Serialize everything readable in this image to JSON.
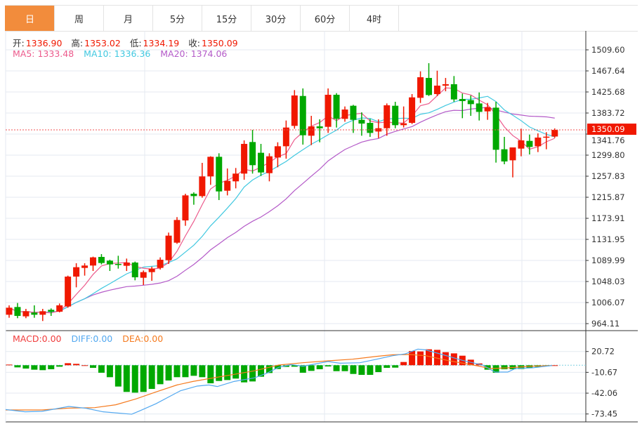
{
  "tabs": [
    {
      "label": "日",
      "active": true
    },
    {
      "label": "周"
    },
    {
      "label": "月"
    },
    {
      "label": "5分"
    },
    {
      "label": "15分"
    },
    {
      "label": "30分"
    },
    {
      "label": "60分"
    },
    {
      "label": "4时"
    }
  ],
  "ohlc_legend": {
    "open_label": "开:",
    "open": "1336.90",
    "high_label": "高:",
    "high": "1353.02",
    "low_label": "低:",
    "low": "1334.19",
    "close_label": "收:",
    "close": "1350.09"
  },
  "ma_legend": {
    "ma5": "MA5: 1333.48",
    "ma10": "MA10: 1336.36",
    "ma20": "MA20: 1374.06"
  },
  "macd_legend": {
    "macd": "MACD:0.00",
    "diff": "DIFF:0.00",
    "dea": "DEA:0.00"
  },
  "colors": {
    "up": "#f01800",
    "down": "#00a800",
    "ma5": "#ec5a8c",
    "ma10": "#40c8e0",
    "ma20": "#b45ac8",
    "diff": "#52a8f0",
    "dea": "#f57a1e",
    "tab_active": "#f28c3c"
  },
  "chart_data": {
    "type": "candlestick",
    "price_axis": {
      "ticks": [
        "1509.60",
        "1467.64",
        "1425.68",
        "1383.72",
        "1341.76",
        "1299.80",
        "1257.83",
        "1215.87",
        "1173.91",
        "1131.95",
        "1089.99",
        "1048.03",
        "1006.07",
        "964.11"
      ],
      "range": [
        964.11,
        1509.6
      ]
    },
    "current_price_label": "1350.09",
    "current_price": 1350.09,
    "candles": [
      [
        981.8,
        1000.5,
        975.8,
        995.8
      ],
      [
        997.2,
        1005.2,
        974.9,
        979.5
      ],
      [
        978.6,
        993.5,
        974.9,
        988.8
      ],
      [
        986.0,
        1000.5,
        975.8,
        981.8
      ],
      [
        981.8,
        993.5,
        969.3,
        988.8
      ],
      [
        991.6,
        994.4,
        979.5,
        987.9
      ],
      [
        987.9,
        1004.2,
        986.5,
        1000.5
      ],
      [
        998.2,
        1059.7,
        995.8,
        1057.8
      ],
      [
        1057.8,
        1084.4,
        1036.4,
        1076.5
      ],
      [
        1075.1,
        1084.4,
        1059.7,
        1079.8
      ],
      [
        1079.8,
        1097.5,
        1069.0,
        1096.1
      ],
      [
        1097.0,
        1102.6,
        1082.1,
        1084.9
      ],
      [
        1089.5,
        1091.4,
        1069.0,
        1082.1
      ],
      [
        1083.0,
        1099.3,
        1073.7,
        1081.1
      ],
      [
        1079.3,
        1093.7,
        1069.0,
        1085.8
      ],
      [
        1085.8,
        1087.7,
        1050.4,
        1056.4
      ],
      [
        1055.5,
        1070.0,
        1041.0,
        1066.7
      ],
      [
        1066.7,
        1077.4,
        1049.5,
        1073.7
      ],
      [
        1075.1,
        1096.1,
        1071.8,
        1091.4
      ],
      [
        1090.5,
        1145.5,
        1083.0,
        1139.4
      ],
      [
        1125.4,
        1176.3,
        1123.1,
        1170.6
      ],
      [
        1169.7,
        1222.9,
        1159.0,
        1219.6
      ],
      [
        1222.9,
        1225.7,
        1201.0,
        1218.2
      ],
      [
        1218.2,
        1284.4,
        1215.0,
        1257.4
      ],
      [
        1257.4,
        1297.5,
        1240.6,
        1296.5
      ],
      [
        1296.5,
        1303.5,
        1210.3,
        1227.5
      ],
      [
        1228.9,
        1273.2,
        1219.6,
        1248.5
      ],
      [
        1247.6,
        1274.2,
        1233.6,
        1263.0
      ],
      [
        1263.0,
        1329.2,
        1250.8,
        1322.2
      ],
      [
        1325.9,
        1350.2,
        1263.0,
        1279.8
      ],
      [
        1304.5,
        1322.2,
        1258.3,
        1265.3
      ],
      [
        1263.9,
        1303.5,
        1247.6,
        1297.5
      ],
      [
        1295.1,
        1325.4,
        1275.6,
        1317.5
      ],
      [
        1317.5,
        1368.8,
        1292.8,
        1354.8
      ],
      [
        1358.1,
        1429.4,
        1352.5,
        1418.7
      ],
      [
        1417.7,
        1432.7,
        1320.8,
        1339.4
      ],
      [
        1338.5,
        1378.1,
        1319.8,
        1357.1
      ],
      [
        1357.1,
        1371.1,
        1325.4,
        1353.4
      ],
      [
        1356.2,
        1432.7,
        1344.1,
        1420.1
      ],
      [
        1420.1,
        1423.3,
        1354.8,
        1372.1
      ],
      [
        1372.1,
        1396.8,
        1366.4,
        1390.7
      ],
      [
        1398.2,
        1400.0,
        1344.1,
        1370.2
      ],
      [
        1370.2,
        1385.1,
        1338.5,
        1362.7
      ],
      [
        1364.1,
        1372.1,
        1336.2,
        1344.1
      ],
      [
        1346.9,
        1371.1,
        1333.8,
        1353.4
      ],
      [
        1353.4,
        1402.8,
        1338.5,
        1399.1
      ],
      [
        1398.2,
        1406.1,
        1353.4,
        1359.5
      ],
      [
        1359.5,
        1396.8,
        1354.8,
        1363.2
      ],
      [
        1364.1,
        1421.5,
        1361.8,
        1414.9
      ],
      [
        1414.0,
        1466.7,
        1403.8,
        1455.0
      ],
      [
        1453.6,
        1483.0,
        1417.7,
        1419.6
      ],
      [
        1421.5,
        1468.1,
        1417.7,
        1438.3
      ],
      [
        1438.3,
        1453.6,
        1427.1,
        1441.1
      ],
      [
        1441.1,
        1457.4,
        1406.1,
        1410.8
      ],
      [
        1411.7,
        1422.4,
        1373.4,
        1407.5
      ],
      [
        1409.4,
        1418.7,
        1378.1,
        1401.4
      ],
      [
        1402.8,
        1424.7,
        1368.8,
        1386.0
      ],
      [
        1387.0,
        1403.8,
        1370.2,
        1395.4
      ],
      [
        1394.4,
        1406.1,
        1284.9,
        1310.5
      ],
      [
        1311.5,
        1336.2,
        1281.6,
        1287.2
      ],
      [
        1289.5,
        1315.2,
        1255.5,
        1315.2
      ],
      [
        1312.8,
        1352.5,
        1297.5,
        1329.2
      ],
      [
        1328.2,
        1340.8,
        1301.2,
        1316.1
      ],
      [
        1317.5,
        1343.2,
        1305.9,
        1334.8
      ],
      [
        1334.8,
        1345.5,
        1311.5,
        1336.6
      ],
      [
        1336.9,
        1353.0,
        1334.2,
        1350.09
      ]
    ],
    "macd_axis": {
      "ticks": [
        "20.72",
        "-10.67",
        "-42.06",
        "-73.45"
      ],
      "range": [
        -76.5,
        35
      ]
    },
    "macd_hist": [
      1.0,
      -3.2,
      -5.0,
      -6.7,
      -7.4,
      -6.0,
      -2.2,
      3.1,
      2.1,
      0,
      -3.9,
      -11.3,
      -18.0,
      -32.1,
      -40.2,
      -41.3,
      -40.2,
      -35.7,
      -28.6,
      -23.0,
      -18.0,
      -18.0,
      -15.9,
      -18.0,
      -27.2,
      -23.7,
      -22.3,
      -20.1,
      -25.8,
      -24.4,
      -17.3,
      -11.7,
      -5.7,
      -2.5,
      -2.2,
      -11.3,
      -8.5,
      -6.0,
      -1.8,
      -8.9,
      -8.9,
      -13.1,
      -14.5,
      -14.5,
      -10.3,
      -3.9,
      -3.6,
      4.9,
      21.5,
      20.8,
      24.0,
      23.2,
      19.7,
      17.9,
      14.4,
      8.4,
      2.8,
      -6.7,
      -11.3,
      -6.0,
      -6.0,
      -5.7,
      -4.3,
      -2.5,
      -1.4,
      0
    ],
    "diff": [
      [
        -1,
        -66.7
      ],
      [
        1.9,
        -70.2
      ],
      [
        3.9,
        -69.5
      ],
      [
        7.1,
        -62.1
      ],
      [
        9.2,
        -64.9
      ],
      [
        11.2,
        -70.2
      ],
      [
        14.6,
        -73.8
      ],
      [
        15.6,
        -68.5
      ],
      [
        17.5,
        -57.9
      ],
      [
        20.4,
        -38.5
      ],
      [
        22.4,
        -31.4
      ],
      [
        23.8,
        -29.7
      ],
      [
        24.8,
        -32.1
      ],
      [
        26.8,
        -24.4
      ],
      [
        29.2,
        -19.1
      ],
      [
        30.7,
        -12.0
      ],
      [
        32.1,
        -3.2
      ],
      [
        33.6,
        1.0
      ],
      [
        35.0,
        -1.5
      ],
      [
        38.0,
        5.6
      ],
      [
        39.4,
        3.1
      ],
      [
        41.8,
        3.8
      ],
      [
        43.8,
        9.1
      ],
      [
        45.7,
        14.4
      ],
      [
        47.2,
        17.2
      ],
      [
        48.7,
        24.3
      ],
      [
        49.6,
        23.2
      ],
      [
        51.6,
        16.2
      ],
      [
        54.0,
        7.4
      ],
      [
        56.4,
        0.3
      ],
      [
        57.9,
        -10.3
      ],
      [
        59.4,
        -10.3
      ],
      [
        60.3,
        -5.0
      ],
      [
        62.3,
        -3.9
      ],
      [
        64.7,
        -0.4
      ]
    ],
    "dea": [
      [
        -1,
        -67.4
      ],
      [
        3.9,
        -67.4
      ],
      [
        7.1,
        -64.6
      ],
      [
        10.2,
        -63.9
      ],
      [
        12.7,
        -59.6
      ],
      [
        15.1,
        -50.8
      ],
      [
        17.5,
        -40.2
      ],
      [
        20.0,
        -29.7
      ],
      [
        21.9,
        -24.4
      ],
      [
        24.3,
        -19.1
      ],
      [
        26.8,
        -13.8
      ],
      [
        29.2,
        -8.5
      ],
      [
        32.1,
        0.3
      ],
      [
        35.0,
        3.8
      ],
      [
        38.0,
        6.7
      ],
      [
        40.9,
        9.1
      ],
      [
        43.8,
        13.4
      ],
      [
        45.7,
        15.8
      ],
      [
        47.7,
        16.2
      ],
      [
        49.6,
        14.4
      ],
      [
        52.6,
        6.3
      ],
      [
        55.0,
        1.0
      ],
      [
        57.4,
        -5.0
      ],
      [
        59.4,
        -3.9
      ],
      [
        62.3,
        -1.4
      ],
      [
        64.7,
        -0.4
      ]
    ]
  }
}
